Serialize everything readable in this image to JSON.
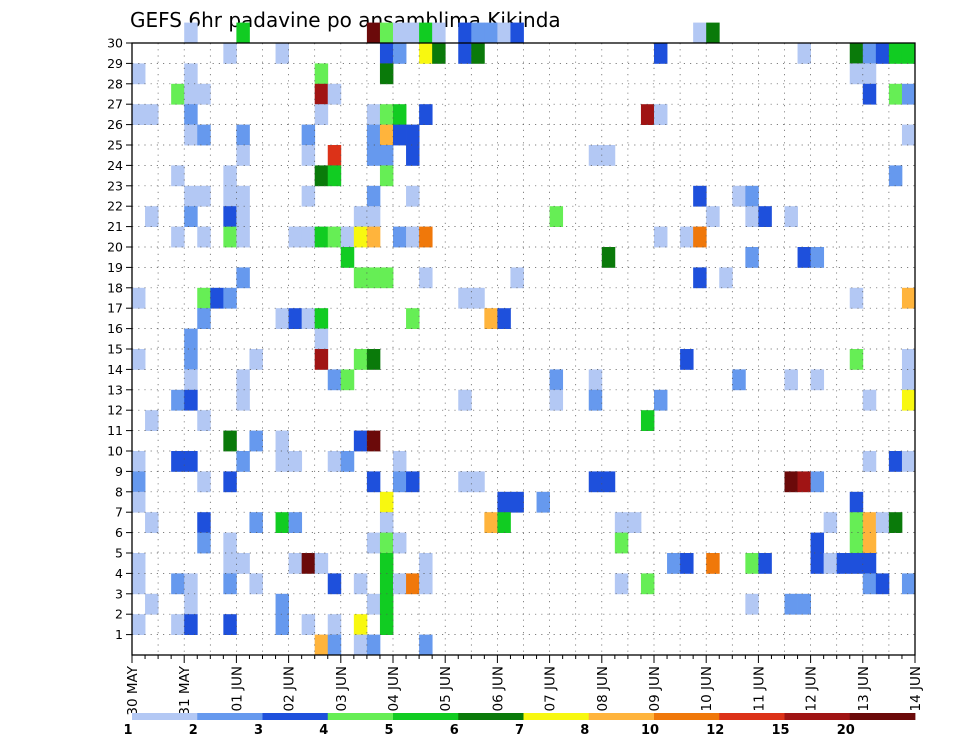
{
  "chart_data": {
    "type": "heatmap",
    "title": "GEFS 6hr padavine po ansamblima Kikinda",
    "x_tick_labels": [
      "30 MAY",
      "31 MAY",
      "01 JUN",
      "02 JUN",
      "03 JUN",
      "04 JUN",
      "05 JUN",
      "06 JUN",
      "07 JUN",
      "08 JUN",
      "09 JUN",
      "10 JUN",
      "11 JUN",
      "12 JUN",
      "13 JUN",
      "14 JUN"
    ],
    "y_tick_labels": [
      "1",
      "2",
      "3",
      "4",
      "5",
      "6",
      "7",
      "8",
      "9",
      "10",
      "11",
      "12",
      "13",
      "14",
      "15",
      "16",
      "17",
      "18",
      "19",
      "20",
      "21",
      "22",
      "23",
      "24",
      "25",
      "26",
      "27",
      "28",
      "29",
      "30"
    ],
    "steps_per_day": 4,
    "x_range_steps": [
      0,
      60
    ],
    "y_range": [
      0,
      30
    ],
    "grid": true,
    "legend_placement": "bottom",
    "colorbar": {
      "tick_labels": [
        "1",
        "2",
        "3",
        "4",
        "5",
        "6",
        "7",
        "8",
        "10",
        "12",
        "15",
        "20"
      ],
      "colors": [
        "#b3c8f4",
        "#6699ee",
        "#1e50dc",
        "#66ee55",
        "#11cc22",
        "#0a7a0a",
        "#f8f810",
        "#ffb43c",
        "#f0780a",
        "#dc3218",
        "#a01414",
        "#6b0a0a"
      ]
    },
    "cells": [
      [
        4,
        30,
        1
      ],
      [
        8,
        30,
        5
      ],
      [
        18,
        30,
        12
      ],
      [
        19,
        30,
        4
      ],
      [
        20,
        30,
        1
      ],
      [
        21,
        30,
        1
      ],
      [
        22,
        30,
        5
      ],
      [
        23,
        30,
        1
      ],
      [
        25,
        30,
        3
      ],
      [
        26,
        30,
        2
      ],
      [
        27,
        30,
        2
      ],
      [
        28,
        30,
        1
      ],
      [
        29,
        30,
        3
      ],
      [
        43,
        30,
        1
      ],
      [
        44,
        30,
        6
      ],
      [
        7,
        29,
        1
      ],
      [
        11,
        29,
        1
      ],
      [
        19,
        29,
        3
      ],
      [
        20,
        29,
        2
      ],
      [
        22,
        29,
        7
      ],
      [
        23,
        29,
        6
      ],
      [
        25,
        29,
        3
      ],
      [
        26,
        29,
        6
      ],
      [
        40,
        29,
        3
      ],
      [
        51,
        29,
        1
      ],
      [
        55,
        29,
        6
      ],
      [
        56,
        29,
        2
      ],
      [
        57,
        29,
        3
      ],
      [
        58,
        29,
        5
      ],
      [
        59,
        29,
        5
      ],
      [
        0,
        28,
        1
      ],
      [
        4,
        28,
        1
      ],
      [
        14,
        28,
        4
      ],
      [
        19,
        28,
        6
      ],
      [
        55,
        28,
        1
      ],
      [
        56,
        28,
        1
      ],
      [
        3,
        27,
        4
      ],
      [
        4,
        27,
        1
      ],
      [
        5,
        27,
        1
      ],
      [
        14,
        27,
        11
      ],
      [
        15,
        27,
        1
      ],
      [
        56,
        27,
        3
      ],
      [
        58,
        27,
        4
      ],
      [
        59,
        27,
        2
      ],
      [
        0,
        26,
        1
      ],
      [
        1,
        26,
        1
      ],
      [
        4,
        26,
        2
      ],
      [
        14,
        26,
        1
      ],
      [
        18,
        26,
        1
      ],
      [
        19,
        26,
        4
      ],
      [
        20,
        26,
        5
      ],
      [
        22,
        26,
        3
      ],
      [
        39,
        26,
        11
      ],
      [
        40,
        26,
        1
      ],
      [
        4,
        25,
        1
      ],
      [
        5,
        25,
        2
      ],
      [
        8,
        25,
        2
      ],
      [
        13,
        25,
        2
      ],
      [
        18,
        25,
        2
      ],
      [
        19,
        25,
        8
      ],
      [
        20,
        25,
        3
      ],
      [
        21,
        25,
        3
      ],
      [
        59,
        25,
        1
      ],
      [
        8,
        24,
        1
      ],
      [
        13,
        24,
        1
      ],
      [
        15,
        24,
        10
      ],
      [
        18,
        24,
        2
      ],
      [
        19,
        24,
        2
      ],
      [
        21,
        24,
        3
      ],
      [
        35,
        24,
        1
      ],
      [
        36,
        24,
        1
      ],
      [
        3,
        23,
        1
      ],
      [
        7,
        23,
        1
      ],
      [
        14,
        23,
        6
      ],
      [
        15,
        23,
        5
      ],
      [
        19,
        23,
        4
      ],
      [
        58,
        23,
        2
      ],
      [
        4,
        22,
        1
      ],
      [
        5,
        22,
        1
      ],
      [
        7,
        22,
        1
      ],
      [
        8,
        22,
        1
      ],
      [
        13,
        22,
        1
      ],
      [
        18,
        22,
        2
      ],
      [
        21,
        22,
        1
      ],
      [
        43,
        22,
        3
      ],
      [
        46,
        22,
        1
      ],
      [
        47,
        22,
        2
      ],
      [
        1,
        21,
        1
      ],
      [
        4,
        21,
        2
      ],
      [
        7,
        21,
        3
      ],
      [
        8,
        21,
        1
      ],
      [
        17,
        21,
        1
      ],
      [
        18,
        21,
        1
      ],
      [
        32,
        21,
        4
      ],
      [
        44,
        21,
        1
      ],
      [
        47,
        21,
        1
      ],
      [
        48,
        21,
        3
      ],
      [
        50,
        21,
        1
      ],
      [
        3,
        20,
        1
      ],
      [
        5,
        20,
        1
      ],
      [
        7,
        20,
        4
      ],
      [
        8,
        20,
        1
      ],
      [
        12,
        20,
        1
      ],
      [
        13,
        20,
        1
      ],
      [
        14,
        20,
        5
      ],
      [
        15,
        20,
        4
      ],
      [
        16,
        20,
        1
      ],
      [
        17,
        20,
        7
      ],
      [
        18,
        20,
        8
      ],
      [
        20,
        20,
        2
      ],
      [
        21,
        20,
        1
      ],
      [
        22,
        20,
        9
      ],
      [
        40,
        20,
        1
      ],
      [
        42,
        20,
        1
      ],
      [
        43,
        20,
        9
      ],
      [
        16,
        19,
        5
      ],
      [
        36,
        19,
        6
      ],
      [
        47,
        19,
        2
      ],
      [
        51,
        19,
        3
      ],
      [
        52,
        19,
        2
      ],
      [
        8,
        18,
        2
      ],
      [
        17,
        18,
        4
      ],
      [
        18,
        18,
        4
      ],
      [
        19,
        18,
        4
      ],
      [
        22,
        18,
        1
      ],
      [
        29,
        18,
        1
      ],
      [
        43,
        18,
        3
      ],
      [
        45,
        18,
        1
      ],
      [
        0,
        17,
        1
      ],
      [
        5,
        17,
        4
      ],
      [
        6,
        17,
        3
      ],
      [
        7,
        17,
        2
      ],
      [
        25,
        17,
        1
      ],
      [
        26,
        17,
        1
      ],
      [
        55,
        17,
        1
      ],
      [
        59,
        17,
        8
      ],
      [
        5,
        16,
        2
      ],
      [
        11,
        16,
        1
      ],
      [
        12,
        16,
        3
      ],
      [
        13,
        16,
        1
      ],
      [
        14,
        16,
        5
      ],
      [
        21,
        16,
        4
      ],
      [
        27,
        16,
        8
      ],
      [
        28,
        16,
        3
      ],
      [
        4,
        15,
        2
      ],
      [
        14,
        15,
        1
      ],
      [
        0,
        14,
        1
      ],
      [
        4,
        14,
        2
      ],
      [
        9,
        14,
        1
      ],
      [
        14,
        14,
        11
      ],
      [
        17,
        14,
        4
      ],
      [
        18,
        14,
        6
      ],
      [
        42,
        14,
        3
      ],
      [
        55,
        14,
        4
      ],
      [
        59,
        14,
        1
      ],
      [
        4,
        13,
        1
      ],
      [
        8,
        13,
        1
      ],
      [
        15,
        13,
        2
      ],
      [
        16,
        13,
        4
      ],
      [
        32,
        13,
        2
      ],
      [
        35,
        13,
        1
      ],
      [
        46,
        13,
        2
      ],
      [
        50,
        13,
        1
      ],
      [
        52,
        13,
        1
      ],
      [
        59,
        13,
        1
      ],
      [
        3,
        12,
        2
      ],
      [
        4,
        12,
        3
      ],
      [
        8,
        12,
        1
      ],
      [
        25,
        12,
        1
      ],
      [
        32,
        12,
        1
      ],
      [
        35,
        12,
        2
      ],
      [
        40,
        12,
        2
      ],
      [
        56,
        12,
        1
      ],
      [
        59,
        12,
        7
      ],
      [
        1,
        11,
        1
      ],
      [
        5,
        11,
        1
      ],
      [
        39,
        11,
        5
      ],
      [
        7,
        10,
        6
      ],
      [
        9,
        10,
        2
      ],
      [
        11,
        10,
        1
      ],
      [
        17,
        10,
        3
      ],
      [
        18,
        10,
        12
      ],
      [
        0,
        9,
        1
      ],
      [
        3,
        9,
        3
      ],
      [
        4,
        9,
        3
      ],
      [
        8,
        9,
        2
      ],
      [
        11,
        9,
        1
      ],
      [
        12,
        9,
        1
      ],
      [
        15,
        9,
        1
      ],
      [
        16,
        9,
        2
      ],
      [
        20,
        9,
        1
      ],
      [
        56,
        9,
        1
      ],
      [
        58,
        9,
        3
      ],
      [
        59,
        9,
        1
      ],
      [
        0,
        8,
        2
      ],
      [
        5,
        8,
        1
      ],
      [
        7,
        8,
        3
      ],
      [
        18,
        8,
        3
      ],
      [
        20,
        8,
        2
      ],
      [
        21,
        8,
        3
      ],
      [
        25,
        8,
        1
      ],
      [
        26,
        8,
        1
      ],
      [
        35,
        8,
        3
      ],
      [
        36,
        8,
        3
      ],
      [
        50,
        8,
        12
      ],
      [
        51,
        8,
        11
      ],
      [
        52,
        8,
        2
      ],
      [
        0,
        7,
        1
      ],
      [
        19,
        7,
        7
      ],
      [
        28,
        7,
        3
      ],
      [
        29,
        7,
        3
      ],
      [
        31,
        7,
        2
      ],
      [
        55,
        7,
        3
      ],
      [
        1,
        6,
        1
      ],
      [
        5,
        6,
        3
      ],
      [
        9,
        6,
        2
      ],
      [
        11,
        6,
        5
      ],
      [
        12,
        6,
        2
      ],
      [
        19,
        6,
        1
      ],
      [
        27,
        6,
        8
      ],
      [
        28,
        6,
        5
      ],
      [
        37,
        6,
        1
      ],
      [
        38,
        6,
        1
      ],
      [
        53,
        6,
        1
      ],
      [
        55,
        6,
        4
      ],
      [
        56,
        6,
        8
      ],
      [
        57,
        6,
        1
      ],
      [
        58,
        6,
        6
      ],
      [
        5,
        5,
        2
      ],
      [
        7,
        5,
        1
      ],
      [
        18,
        5,
        1
      ],
      [
        19,
        5,
        4
      ],
      [
        20,
        5,
        1
      ],
      [
        37,
        5,
        4
      ],
      [
        52,
        5,
        3
      ],
      [
        55,
        5,
        4
      ],
      [
        56,
        5,
        8
      ],
      [
        0,
        4,
        1
      ],
      [
        7,
        4,
        1
      ],
      [
        8,
        4,
        1
      ],
      [
        12,
        4,
        1
      ],
      [
        13,
        4,
        12
      ],
      [
        14,
        4,
        1
      ],
      [
        19,
        4,
        5
      ],
      [
        22,
        4,
        1
      ],
      [
        41,
        4,
        2
      ],
      [
        42,
        4,
        3
      ],
      [
        44,
        4,
        9
      ],
      [
        47,
        4,
        4
      ],
      [
        48,
        4,
        3
      ],
      [
        52,
        4,
        3
      ],
      [
        53,
        4,
        1
      ],
      [
        54,
        4,
        3
      ],
      [
        55,
        4,
        3
      ],
      [
        56,
        4,
        3
      ],
      [
        0,
        3,
        1
      ],
      [
        3,
        3,
        2
      ],
      [
        4,
        3,
        1
      ],
      [
        7,
        3,
        2
      ],
      [
        9,
        3,
        1
      ],
      [
        15,
        3,
        3
      ],
      [
        17,
        3,
        1
      ],
      [
        19,
        3,
        5
      ],
      [
        20,
        3,
        1
      ],
      [
        21,
        3,
        9
      ],
      [
        22,
        3,
        1
      ],
      [
        37,
        3,
        1
      ],
      [
        39,
        3,
        4
      ],
      [
        56,
        3,
        2
      ],
      [
        57,
        3,
        3
      ],
      [
        59,
        3,
        2
      ],
      [
        1,
        2,
        1
      ],
      [
        4,
        2,
        1
      ],
      [
        11,
        2,
        2
      ],
      [
        18,
        2,
        1
      ],
      [
        19,
        2,
        5
      ],
      [
        47,
        2,
        1
      ],
      [
        50,
        2,
        2
      ],
      [
        51,
        2,
        2
      ],
      [
        0,
        1,
        1
      ],
      [
        3,
        1,
        1
      ],
      [
        4,
        1,
        3
      ],
      [
        7,
        1,
        3
      ],
      [
        11,
        1,
        2
      ],
      [
        13,
        1,
        1
      ],
      [
        15,
        1,
        1
      ],
      [
        17,
        1,
        7
      ],
      [
        19,
        1,
        5
      ],
      [
        14,
        0,
        8
      ],
      [
        15,
        0,
        2
      ],
      [
        17,
        0,
        1
      ],
      [
        18,
        0,
        2
      ],
      [
        22,
        0,
        2
      ]
    ]
  }
}
